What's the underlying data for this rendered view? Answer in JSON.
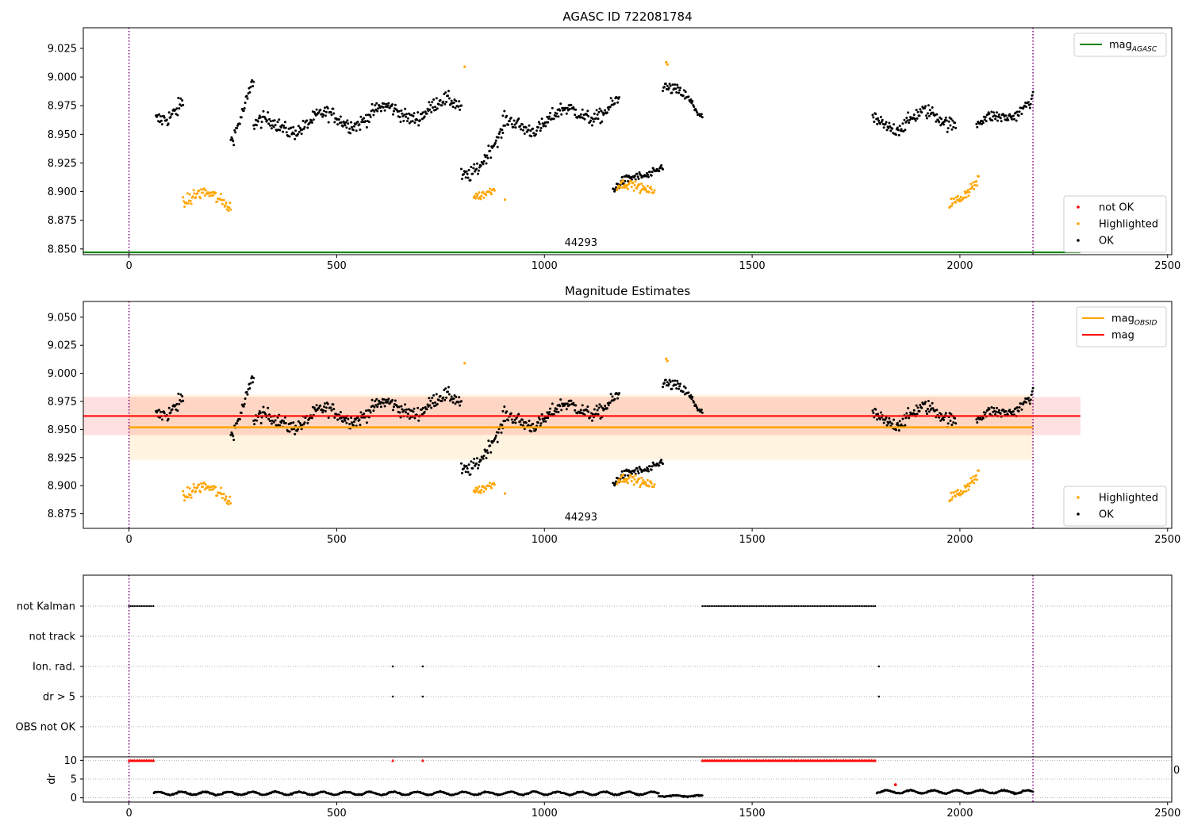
{
  "chart_data": [
    {
      "type": "scatter",
      "title": "AGASC ID 722081784",
      "xlim": [
        -110,
        2510
      ],
      "ylim": [
        8.845,
        9.043
      ],
      "xticks": [
        0,
        500,
        1000,
        1500,
        2000,
        2500
      ],
      "yticks": [
        8.85,
        8.875,
        8.9,
        8.925,
        8.95,
        8.975,
        9.0,
        9.025
      ],
      "ytick_labels": [
        "8.850",
        "8.875",
        "8.900",
        "8.925",
        "8.950",
        "8.975",
        "9.000",
        "9.025"
      ],
      "vlines": [
        0,
        2176
      ],
      "annotation": {
        "text": "44293",
        "x": 1088,
        "y": 8.8525
      },
      "hline": {
        "name": "mag",
        "sub": "AGASC",
        "y": 8.847,
        "x0": -110,
        "x1": 2290,
        "color": "#008000"
      },
      "legend_upper": [
        {
          "label": "mag",
          "sub": "AGASC",
          "color": "#008000",
          "kind": "line"
        }
      ],
      "legend_lower": [
        {
          "label": "not OK",
          "color": "#ff0000",
          "kind": "dot"
        },
        {
          "label": "Highlighted",
          "color": "#ffa500",
          "kind": "dot"
        },
        {
          "label": "OK",
          "color": "#000000",
          "kind": "dot"
        }
      ],
      "ok_segments": [
        [
          65,
          130,
          8.96,
          8.985,
          0.012
        ],
        [
          245,
          300,
          8.95,
          8.995,
          0.01
        ],
        [
          300,
          800,
          8.955,
          8.975,
          0.01
        ],
        [
          800,
          900,
          8.915,
          8.945,
          0.01
        ],
        [
          900,
          1180,
          8.955,
          8.975,
          0.01
        ],
        [
          1165,
          1285,
          8.9,
          8.925,
          0.006
        ],
        [
          1285,
          1380,
          8.995,
          8.965,
          0.008
        ],
        [
          1790,
          1990,
          8.96,
          8.965,
          0.01
        ],
        [
          2040,
          2176,
          8.955,
          8.98,
          0.008
        ]
      ],
      "highlighted_segments": [
        [
          130,
          245,
          8.893,
          8.893,
          0.009
        ],
        [
          830,
          880,
          8.9,
          8.9,
          0.006
        ],
        [
          1175,
          1265,
          8.902,
          8.905,
          0.006
        ],
        [
          1975,
          2045,
          8.895,
          8.905,
          0.008
        ]
      ],
      "highlighted_extra": [
        [
          808,
          9.009
        ],
        [
          1293,
          9.013
        ],
        [
          1296,
          9.011
        ],
        [
          905,
          8.893
        ]
      ]
    },
    {
      "type": "scatter",
      "title": "Magnitude Estimates",
      "xlim": [
        -110,
        2510
      ],
      "ylim": [
        8.862,
        9.064
      ],
      "xticks": [
        0,
        500,
        1000,
        1500,
        2000,
        2500
      ],
      "yticks": [
        8.875,
        8.9,
        8.925,
        8.95,
        8.975,
        9.0,
        9.025,
        9.05
      ],
      "ytick_labels": [
        "8.875",
        "8.900",
        "8.925",
        "8.950",
        "8.975",
        "9.000",
        "9.025",
        "9.050"
      ],
      "vlines": [
        0,
        2176
      ],
      "annotation": {
        "text": "44293",
        "x": 1088,
        "y": 8.869
      },
      "mag_obsid": {
        "y": 8.952,
        "band": [
          8.923,
          8.981
        ],
        "x0": 0,
        "x1": 2176,
        "color": "#ffa500"
      },
      "mag": {
        "y": 8.962,
        "band": [
          8.945,
          8.979
        ],
        "x0": -110,
        "x1": 2290,
        "color": "#ff0000"
      },
      "legend_upper": [
        {
          "label": "mag",
          "sub": "OBSID",
          "color": "#ffa500",
          "kind": "line"
        },
        {
          "label": "mag",
          "sub": "",
          "color": "#ff0000",
          "kind": "line"
        }
      ],
      "legend_lower": [
        {
          "label": "Highlighted",
          "color": "#ffa500",
          "kind": "dot"
        },
        {
          "label": "OK",
          "color": "#000000",
          "kind": "dot"
        }
      ]
    },
    {
      "type": "scatter",
      "xlim": [
        -110,
        2510
      ],
      "xticks": [
        0,
        500,
        1000,
        1500,
        2000,
        2500
      ],
      "vlines": [
        0,
        2176
      ],
      "flag_rows": [
        "not Kalman",
        "not track",
        "Ion. rad.",
        "dr > 5",
        "OBS not OK"
      ],
      "flags": {
        "not Kalman": [
          [
            0,
            60
          ],
          [
            1380,
            1800
          ]
        ],
        "Ion. rad.": [
          [
            635,
            635
          ],
          [
            707,
            707
          ],
          [
            1805,
            1805
          ]
        ],
        "dr > 5": [
          [
            635,
            635
          ],
          [
            707,
            707
          ],
          [
            1805,
            1805
          ]
        ]
      },
      "dr_ylabel": "dr",
      "dr_ylim": [
        -0.5,
        10.5
      ],
      "dr_yticks": [
        0,
        5,
        10
      ],
      "dr_clipped_label": "0",
      "dr_saturated": [
        [
          0,
          60
        ],
        [
          635,
          635
        ],
        [
          707,
          707
        ],
        [
          1380,
          1800
        ]
      ],
      "dr_segments": [
        [
          60,
          1275,
          1.2,
          0.5
        ],
        [
          1275,
          1380,
          0.5,
          0.2
        ],
        [
          1800,
          2176,
          1.6,
          0.5
        ]
      ],
      "dr_outliers": [
        [
          1845,
          3.5
        ]
      ]
    }
  ]
}
